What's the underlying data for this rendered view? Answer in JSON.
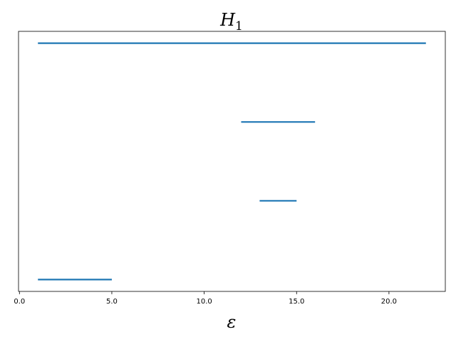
{
  "chart_data": {
    "type": "barcode",
    "title": {
      "symbol": "H",
      "subscript": "1"
    },
    "x_label": "ε",
    "bars": [
      [
        1,
        22
      ],
      [
        12,
        16
      ],
      [
        13,
        15
      ],
      [
        1,
        5
      ]
    ],
    "color": "#1f77b4",
    "xlim": [
      -0.05,
      23.05
    ],
    "xticks": [
      {
        "value": 0,
        "label": "0.0"
      },
      {
        "value": 5,
        "label": "5.0"
      },
      {
        "value": 10,
        "label": "10.0"
      },
      {
        "value": 15,
        "label": "15.0"
      },
      {
        "value": 20,
        "label": "20.0"
      }
    ]
  }
}
